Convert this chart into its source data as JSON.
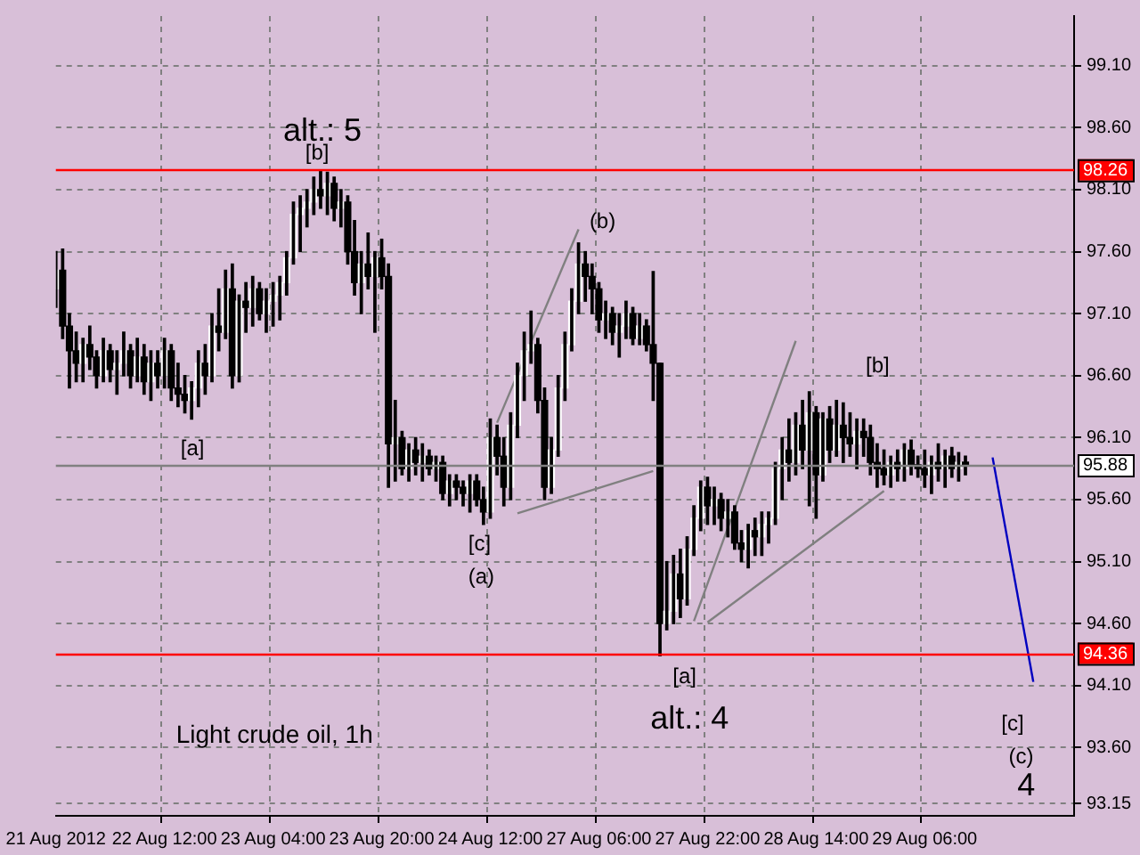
{
  "chart_data": {
    "type": "candlestick",
    "color": "#000000",
    "colors": [
      "#ffffff",
      "#000000",
      "#000000",
      "#000000",
      "#ffffff",
      "#000000",
      "#000000",
      "#ffffff",
      "#000000",
      "#ffffff",
      "#ffffff",
      "#000000",
      "#ffffff",
      "#000000",
      "#ffffff",
      "#000000",
      "#ffffff",
      "#000000",
      "#000000",
      "#000000",
      "#ffffff",
      "#ffffff",
      "#000000",
      "#ffffff",
      "#000000",
      "#ffffff",
      "#000000",
      "#ffffff",
      "#000000",
      "#ffffff",
      "#000000",
      "#ffffff",
      "#ffffff",
      "#ffffff",
      "#ffffff",
      "#ffffff",
      "#ffffff",
      "#ffffff",
      "#ffffff",
      "#000000",
      "#ffffff",
      "#000000",
      "#ffffff",
      "#000000",
      "#000000",
      "#ffffff",
      "#000000",
      "#ffffff",
      "#000000",
      "#000000",
      "#ffffff",
      "#000000",
      "#ffffff",
      "#000000",
      "#ffffff",
      "#000000",
      "#ffffff",
      "#000000",
      "#ffffff",
      "#000000",
      "#000000",
      "#ffffff",
      "#000000",
      "#000000",
      "#ffffff",
      "#000000",
      "#000000",
      "#ffffff",
      "#ffffff",
      "#ffffff",
      "#ffffff",
      "#000000",
      "#000000",
      "#ffffff",
      "#ffffff",
      "#ffffff",
      "#ffffff",
      "#ffffff",
      "#000000",
      "#000000",
      "#000000",
      "#ffffff",
      "#000000",
      "#ffffff",
      "#ffffff",
      "#000000",
      "#ffffff",
      "#000000",
      "#000000",
      "#000000",
      "#ffffff",
      "#ffffff",
      "#000000",
      "#ffffff",
      "#ffffff",
      "#ffffff",
      "#000000",
      "#ffffff",
      "#000000",
      "#ffffff",
      "#000000",
      "#000000",
      "#ffffff",
      "#000000",
      "#ffffff",
      "#ffffff",
      "#ffffff",
      "#ffffff",
      "#000000",
      "#ffffff",
      "#000000",
      "#ffffff",
      "#000000",
      "#ffffff",
      "#000000",
      "#ffffff",
      "#000000",
      "#000000",
      "#ffffff",
      "#000000",
      "#000000",
      "#000000",
      "#000000",
      "#ffffff",
      "#000000",
      "#ffffff",
      "#000000",
      "#000000",
      "#000000",
      "#ffffff",
      "#000000",
      "#ffffff",
      "#000000",
      "#ffffff",
      "#000000",
      null,
      null,
      null,
      null,
      null,
      null,
      null,
      null,
      null,
      null,
      null,
      null,
      null,
      null,
      null,
      null
    ],
    "categories": [
      "21 Aug 2012",
      null,
      null,
      null,
      null,
      null,
      null,
      null,
      null,
      null,
      null,
      null,
      null,
      null,
      null,
      null,
      "22 Aug 12:00",
      null,
      null,
      null,
      null,
      null,
      null,
      null,
      null,
      null,
      null,
      null,
      null,
      null,
      null,
      null,
      "23 Aug 04:00",
      null,
      null,
      null,
      null,
      null,
      null,
      null,
      null,
      null,
      null,
      null,
      null,
      null,
      null,
      null,
      "23 Aug 20:00",
      null,
      null,
      null,
      null,
      null,
      null,
      null,
      null,
      null,
      null,
      null,
      null,
      null,
      null,
      null,
      "24 Aug 12:00",
      null,
      null,
      null,
      null,
      null,
      null,
      null,
      null,
      null,
      null,
      null,
      null,
      null,
      null,
      null,
      "27 Aug 06:00",
      null,
      null,
      null,
      null,
      null,
      null,
      null,
      null,
      null,
      null,
      null,
      null,
      null,
      null,
      null,
      "27 Aug 22:00",
      null,
      null,
      null,
      null,
      null,
      null,
      null,
      null,
      null,
      null,
      null,
      null,
      null,
      null,
      null,
      "28 Aug 14:00",
      null,
      null,
      null,
      null,
      null,
      null,
      null,
      null,
      null,
      null,
      null,
      null,
      null,
      null,
      null,
      "29 Aug 06:00",
      null,
      null,
      null,
      null,
      null,
      null,
      null,
      null,
      null,
      null,
      null,
      null,
      null,
      null,
      null,
      null,
      null,
      null,
      null,
      null,
      null,
      null
    ],
    "ohlc": [
      [
        97.3,
        97.6,
        97.15,
        97.45
      ],
      [
        97.45,
        97.62,
        96.9,
        97.0
      ],
      [
        97.0,
        97.1,
        96.5,
        96.8
      ],
      [
        96.8,
        96.95,
        96.55,
        96.7
      ],
      [
        96.7,
        96.9,
        96.55,
        96.85
      ],
      [
        96.85,
        97.0,
        96.65,
        96.75
      ],
      [
        96.75,
        96.8,
        96.5,
        96.6
      ],
      [
        96.6,
        96.9,
        96.55,
        96.8
      ],
      [
        96.8,
        96.85,
        96.55,
        96.65
      ],
      [
        96.65,
        96.8,
        96.45,
        96.7
      ],
      [
        96.7,
        96.95,
        96.6,
        96.8
      ],
      [
        96.8,
        96.85,
        96.5,
        96.6
      ],
      [
        96.6,
        96.9,
        96.55,
        96.75
      ],
      [
        96.75,
        96.85,
        96.45,
        96.55
      ],
      [
        96.55,
        96.8,
        96.4,
        96.7
      ],
      [
        96.7,
        96.8,
        96.5,
        96.6
      ],
      [
        96.6,
        96.9,
        96.5,
        96.8
      ],
      [
        96.8,
        96.85,
        96.4,
        96.5
      ],
      [
        96.5,
        96.7,
        96.35,
        96.45
      ],
      [
        96.45,
        96.6,
        96.3,
        96.4
      ],
      [
        96.4,
        96.55,
        96.25,
        96.5
      ],
      [
        96.5,
        96.8,
        96.35,
        96.7
      ],
      [
        96.7,
        96.85,
        96.45,
        96.6
      ],
      [
        96.6,
        97.1,
        96.55,
        97.0
      ],
      [
        97.0,
        97.3,
        96.8,
        96.95
      ],
      [
        96.95,
        97.45,
        96.9,
        97.3
      ],
      [
        97.3,
        97.5,
        96.5,
        96.6
      ],
      [
        96.6,
        97.25,
        96.55,
        97.2
      ],
      [
        97.2,
        97.35,
        96.95,
        97.15
      ],
      [
        97.15,
        97.4,
        97.0,
        97.3
      ],
      [
        97.3,
        97.35,
        97.05,
        97.1
      ],
      [
        97.1,
        97.3,
        96.95,
        97.2
      ],
      [
        97.2,
        97.35,
        97.0,
        97.25
      ],
      [
        97.25,
        97.4,
        97.05,
        97.35
      ],
      [
        97.35,
        97.6,
        97.25,
        97.55
      ],
      [
        97.55,
        98.0,
        97.5,
        97.9
      ],
      [
        97.9,
        98.05,
        97.6,
        97.95
      ],
      [
        97.95,
        98.1,
        97.8,
        98.0
      ],
      [
        98.0,
        98.2,
        97.9,
        98.1
      ],
      [
        98.1,
        98.25,
        97.95,
        98.05
      ],
      [
        98.05,
        98.24,
        97.9,
        98.15
      ],
      [
        98.15,
        98.2,
        97.85,
        97.95
      ],
      [
        97.95,
        98.1,
        97.8,
        98.0
      ],
      [
        98.0,
        98.05,
        97.5,
        97.6
      ],
      [
        97.6,
        97.85,
        97.25,
        97.35
      ],
      [
        97.35,
        97.6,
        97.1,
        97.5
      ],
      [
        97.5,
        97.75,
        97.3,
        97.4
      ],
      [
        97.4,
        97.6,
        96.95,
        97.55
      ],
      [
        97.55,
        97.7,
        97.3,
        97.4
      ],
      [
        97.4,
        97.5,
        95.7,
        96.05
      ],
      [
        96.05,
        96.4,
        95.75,
        96.1
      ],
      [
        96.1,
        96.15,
        95.8,
        95.85
      ],
      [
        95.85,
        96.05,
        95.75,
        96.0
      ],
      [
        96.0,
        96.1,
        95.8,
        95.9
      ],
      [
        95.9,
        96.05,
        95.75,
        95.95
      ],
      [
        95.95,
        96.0,
        95.8,
        95.85
      ],
      [
        95.85,
        95.95,
        95.75,
        95.9
      ],
      [
        95.9,
        95.95,
        95.6,
        95.65
      ],
      [
        95.65,
        95.8,
        95.55,
        95.75
      ],
      [
        95.75,
        95.8,
        95.6,
        95.7
      ],
      [
        95.7,
        95.75,
        95.55,
        95.65
      ],
      [
        95.65,
        95.8,
        95.5,
        95.75
      ],
      [
        95.75,
        95.8,
        95.55,
        95.6
      ],
      [
        95.6,
        95.7,
        95.4,
        95.5
      ],
      [
        95.5,
        96.25,
        95.45,
        96.1
      ],
      [
        96.1,
        96.2,
        95.8,
        95.95
      ],
      [
        95.95,
        96.1,
        95.55,
        95.7
      ],
      [
        95.7,
        96.3,
        95.6,
        96.2
      ],
      [
        96.2,
        96.7,
        96.1,
        96.6
      ],
      [
        96.6,
        96.95,
        96.4,
        96.8
      ],
      [
        96.8,
        97.12,
        96.7,
        96.85
      ],
      [
        96.85,
        96.9,
        96.3,
        96.4
      ],
      [
        96.4,
        96.5,
        95.6,
        95.7
      ],
      [
        95.7,
        96.1,
        95.65,
        96.0
      ],
      [
        96.0,
        96.6,
        95.95,
        96.5
      ],
      [
        96.5,
        96.95,
        96.4,
        96.85
      ],
      [
        96.85,
        97.3,
        96.8,
        97.2
      ],
      [
        97.2,
        97.67,
        97.1,
        97.5
      ],
      [
        97.5,
        97.6,
        97.2,
        97.4
      ],
      [
        97.4,
        97.5,
        97.1,
        97.3
      ],
      [
        97.3,
        97.35,
        96.95,
        97.05
      ],
      [
        97.05,
        97.2,
        96.9,
        97.1
      ],
      [
        97.1,
        97.15,
        96.85,
        96.95
      ],
      [
        96.95,
        97.1,
        96.75,
        97.0
      ],
      [
        97.0,
        97.2,
        96.9,
        97.1
      ],
      [
        97.1,
        97.15,
        96.85,
        96.9
      ],
      [
        96.9,
        97.1,
        96.85,
        97.0
      ],
      [
        97.0,
        97.05,
        96.8,
        96.85
      ],
      [
        96.85,
        97.44,
        96.4,
        96.7
      ],
      [
        96.7,
        96.7,
        94.34,
        94.6
      ],
      [
        94.6,
        95.1,
        94.55,
        94.7
      ],
      [
        94.7,
        95.15,
        94.6,
        95.0
      ],
      [
        95.0,
        95.2,
        94.65,
        94.8
      ],
      [
        94.8,
        95.3,
        94.75,
        95.2
      ],
      [
        95.2,
        95.55,
        95.15,
        95.45
      ],
      [
        95.45,
        95.75,
        95.35,
        95.7
      ],
      [
        95.7,
        95.78,
        95.4,
        95.55
      ],
      [
        95.55,
        95.7,
        95.4,
        95.6
      ],
      [
        95.6,
        95.65,
        95.35,
        95.45
      ],
      [
        95.45,
        95.6,
        95.3,
        95.5
      ],
      [
        95.5,
        95.55,
        95.2,
        95.25
      ],
      [
        95.25,
        95.35,
        95.1,
        95.2
      ],
      [
        95.2,
        95.4,
        95.05,
        95.35
      ],
      [
        95.35,
        95.45,
        95.15,
        95.3
      ],
      [
        95.3,
        95.5,
        95.15,
        95.4
      ],
      [
        95.4,
        95.5,
        95.25,
        95.45
      ],
      [
        95.45,
        95.9,
        95.4,
        95.85
      ],
      [
        95.85,
        96.1,
        95.6,
        96.0
      ],
      [
        96.0,
        96.25,
        95.75,
        95.9
      ],
      [
        95.9,
        96.3,
        95.8,
        96.2
      ],
      [
        96.2,
        96.4,
        95.85,
        96.0
      ],
      [
        96.0,
        96.47,
        95.55,
        96.3
      ],
      [
        96.3,
        96.35,
        95.45,
        95.8
      ],
      [
        95.8,
        96.3,
        95.75,
        96.25
      ],
      [
        96.25,
        96.35,
        95.9,
        96.0
      ],
      [
        96.0,
        96.4,
        95.95,
        96.2
      ],
      [
        96.2,
        96.38,
        95.9,
        96.1
      ],
      [
        96.1,
        96.3,
        95.95,
        96.05
      ],
      [
        96.05,
        96.25,
        95.85,
        96.15
      ],
      [
        96.15,
        96.25,
        95.95,
        96.1
      ],
      [
        96.1,
        96.2,
        95.8,
        95.9
      ],
      [
        95.9,
        96.05,
        95.7,
        95.85
      ],
      [
        95.85,
        96.0,
        95.72,
        95.8
      ],
      [
        95.8,
        95.95,
        95.7,
        95.9
      ],
      [
        95.9,
        96.0,
        95.75,
        95.85
      ],
      [
        95.85,
        96.05,
        95.75,
        96.0
      ],
      [
        96.0,
        96.08,
        95.8,
        95.88
      ],
      [
        95.88,
        95.95,
        95.78,
        95.85
      ],
      [
        95.85,
        96.0,
        95.7,
        95.8
      ],
      [
        95.8,
        95.95,
        95.65,
        95.9
      ],
      [
        95.9,
        96.05,
        95.75,
        95.85
      ],
      [
        95.85,
        96.0,
        95.7,
        95.95
      ],
      [
        95.95,
        96.02,
        95.78,
        95.85
      ],
      [
        95.85,
        95.98,
        95.75,
        95.9
      ],
      [
        95.9,
        95.95,
        95.8,
        95.88
      ],
      null,
      null,
      null,
      null,
      null,
      null,
      null,
      null,
      null,
      null,
      null,
      null,
      null,
      null,
      null,
      null
    ],
    "series": [
      {
        "type": "line",
        "color": "#808080",
        "values": [
          null,
          null,
          null,
          null,
          null,
          null,
          null,
          null,
          null,
          null,
          null,
          null,
          null,
          null,
          null,
          null,
          null,
          null,
          null,
          null,
          null,
          null,
          null,
          null,
          null,
          null,
          null,
          null,
          null,
          null,
          null,
          null,
          null,
          null,
          null,
          null,
          null,
          null,
          null,
          null,
          null,
          null,
          null,
          null,
          null,
          null,
          null,
          null,
          null,
          null,
          null,
          null,
          null,
          null,
          null,
          null,
          null,
          null,
          null,
          null,
          null,
          null,
          null,
          null,
          null,
          96.22,
          null,
          null,
          null,
          null,
          null,
          null,
          null,
          null,
          null,
          null,
          null,
          97.78,
          null,
          null,
          null,
          null,
          null,
          null,
          null,
          null,
          null,
          null,
          null,
          null,
          null,
          null,
          null,
          null,
          null,
          null,
          null,
          null,
          null,
          null,
          null,
          null,
          null,
          null,
          null,
          null,
          null,
          null,
          null,
          null,
          null,
          null,
          null,
          null,
          null,
          null,
          null,
          null,
          null,
          null,
          null,
          null,
          null,
          null,
          null,
          null,
          null,
          null,
          null,
          null,
          null,
          null,
          null,
          null,
          null,
          null,
          null,
          null,
          null,
          null,
          null,
          null,
          null,
          null,
          null,
          null,
          null,
          null,
          null,
          null,
          null
        ]
      },
      {
        "type": "line",
        "color": "#808080",
        "values": [
          null,
          null,
          null,
          null,
          null,
          null,
          null,
          null,
          null,
          null,
          null,
          null,
          null,
          null,
          null,
          null,
          null,
          null,
          null,
          null,
          null,
          null,
          null,
          null,
          null,
          null,
          null,
          null,
          null,
          null,
          null,
          null,
          null,
          null,
          null,
          null,
          null,
          null,
          null,
          null,
          null,
          null,
          null,
          null,
          null,
          null,
          null,
          null,
          null,
          null,
          null,
          null,
          null,
          null,
          null,
          null,
          null,
          null,
          null,
          null,
          null,
          null,
          null,
          null,
          null,
          null,
          null,
          null,
          95.49,
          null,
          null,
          null,
          null,
          null,
          null,
          null,
          null,
          null,
          null,
          null,
          null,
          null,
          null,
          null,
          null,
          null,
          null,
          null,
          95.83,
          null,
          null,
          null,
          null,
          null,
          null,
          null,
          null,
          null,
          null,
          null,
          null,
          null,
          null,
          null,
          null,
          null,
          null,
          null,
          null,
          null,
          null,
          null,
          null,
          null,
          null,
          null,
          null,
          null,
          null,
          null,
          null,
          null,
          null,
          null,
          null,
          null,
          null,
          null,
          null,
          null,
          null,
          null,
          null,
          null,
          null,
          null,
          null,
          null,
          null,
          null,
          null,
          null,
          null,
          null,
          null,
          null,
          null,
          null,
          null,
          null,
          null
        ]
      },
      {
        "type": "line",
        "color": "#808080",
        "values": [
          null,
          null,
          null,
          null,
          null,
          null,
          null,
          null,
          null,
          null,
          null,
          null,
          null,
          null,
          null,
          null,
          null,
          null,
          null,
          null,
          null,
          null,
          null,
          null,
          null,
          null,
          null,
          null,
          null,
          null,
          null,
          null,
          null,
          null,
          null,
          null,
          null,
          null,
          null,
          null,
          null,
          null,
          null,
          null,
          null,
          null,
          null,
          null,
          null,
          null,
          null,
          null,
          null,
          null,
          null,
          null,
          null,
          null,
          null,
          null,
          null,
          null,
          null,
          null,
          null,
          null,
          null,
          null,
          null,
          null,
          null,
          null,
          null,
          null,
          null,
          null,
          null,
          null,
          null,
          null,
          null,
          null,
          null,
          null,
          null,
          null,
          null,
          null,
          null,
          null,
          null,
          null,
          null,
          null,
          94.62,
          null,
          null,
          null,
          null,
          null,
          null,
          null,
          null,
          null,
          null,
          null,
          null,
          null,
          null,
          96.88,
          null,
          null,
          null,
          null,
          null,
          null,
          null,
          null,
          null,
          null,
          null,
          null,
          null,
          null,
          null,
          null,
          null,
          null,
          null,
          null,
          null,
          null,
          null,
          null,
          null,
          null,
          null,
          null,
          null,
          null,
          null,
          null,
          null,
          null,
          null,
          null,
          null,
          null,
          null,
          null,
          null
        ]
      },
      {
        "type": "line",
        "color": "#808080",
        "values": [
          null,
          null,
          null,
          null,
          null,
          null,
          null,
          null,
          null,
          null,
          null,
          null,
          null,
          null,
          null,
          null,
          null,
          null,
          null,
          null,
          null,
          null,
          null,
          null,
          null,
          null,
          null,
          null,
          null,
          null,
          null,
          null,
          null,
          null,
          null,
          null,
          null,
          null,
          null,
          null,
          null,
          null,
          null,
          null,
          null,
          null,
          null,
          null,
          null,
          null,
          null,
          null,
          null,
          null,
          null,
          null,
          null,
          null,
          null,
          null,
          null,
          null,
          null,
          null,
          null,
          null,
          null,
          null,
          null,
          null,
          null,
          null,
          null,
          null,
          null,
          null,
          null,
          null,
          null,
          null,
          null,
          null,
          null,
          null,
          null,
          null,
          null,
          null,
          null,
          null,
          null,
          null,
          null,
          null,
          null,
          null,
          94.61,
          null,
          null,
          null,
          null,
          null,
          null,
          null,
          null,
          null,
          null,
          null,
          null,
          null,
          null,
          null,
          null,
          null,
          null,
          null,
          null,
          null,
          null,
          null,
          null,
          null,
          95.67,
          null,
          null,
          null,
          null,
          null,
          null,
          null,
          null,
          null,
          null,
          null,
          null,
          null,
          null,
          null,
          null,
          null,
          null,
          null,
          null,
          null,
          null,
          null,
          null,
          null,
          null,
          null,
          null
        ]
      },
      {
        "type": "line",
        "color": "#0000c0",
        "values": [
          null,
          null,
          null,
          null,
          null,
          null,
          null,
          null,
          null,
          null,
          null,
          null,
          null,
          null,
          null,
          null,
          null,
          null,
          null,
          null,
          null,
          null,
          null,
          null,
          null,
          null,
          null,
          null,
          null,
          null,
          null,
          null,
          null,
          null,
          null,
          null,
          null,
          null,
          null,
          null,
          null,
          null,
          null,
          null,
          null,
          null,
          null,
          null,
          null,
          null,
          null,
          null,
          null,
          null,
          null,
          null,
          null,
          null,
          null,
          null,
          null,
          null,
          null,
          null,
          null,
          null,
          null,
          null,
          null,
          null,
          null,
          null,
          null,
          null,
          null,
          null,
          null,
          null,
          null,
          null,
          null,
          null,
          null,
          null,
          null,
          null,
          null,
          null,
          null,
          null,
          null,
          null,
          null,
          null,
          null,
          null,
          null,
          null,
          null,
          null,
          null,
          null,
          null,
          null,
          null,
          null,
          null,
          null,
          null,
          null,
          null,
          null,
          null,
          null,
          null,
          null,
          null,
          null,
          null,
          null,
          null,
          null,
          null,
          null,
          null,
          null,
          null,
          null,
          null,
          null,
          null,
          null,
          null,
          null,
          null,
          null,
          null,
          null,
          95.94,
          null,
          null,
          null,
          null,
          null,
          94.13,
          null,
          null,
          null,
          null,
          null,
          null
        ]
      }
    ],
    "ylim": [
      93.05,
      99.5
    ],
    "yticks": [
      {
        "value": 93.15,
        "label": "93.15"
      },
      {
        "value": 93.6,
        "label": "93.60"
      },
      {
        "value": 94.1,
        "label": "94.10"
      },
      {
        "value": 94.6,
        "label": "94.60"
      },
      {
        "value": 95.1,
        "label": "95.10"
      },
      {
        "value": 95.6,
        "label": "95.60"
      },
      {
        "value": 96.1,
        "label": "96.10"
      },
      {
        "value": 96.6,
        "label": "96.60"
      },
      {
        "value": 97.1,
        "label": "97.10"
      },
      {
        "value": 97.6,
        "label": "97.60"
      },
      {
        "value": 98.1,
        "label": "98.10"
      },
      {
        "value": 98.6,
        "label": "98.60"
      },
      {
        "value": 99.1,
        "label": "99.10"
      }
    ],
    "grid": true,
    "ref_lines": [
      {
        "axis": "y",
        "value": 98.26,
        "label": "98.26",
        "color": "#ff0000"
      },
      {
        "axis": "y",
        "value": 95.88,
        "label": "95.88",
        "color": "#808080"
      },
      {
        "axis": "y",
        "value": 94.36,
        "label": "94.36",
        "color": "#ff0000"
      }
    ],
    "annotations": [
      {
        "text": "alt.: 5",
        "y": 98.25
      },
      {
        "text": "[b]",
        "y": 98.25
      },
      {
        "text": "[a]",
        "y": 96.25
      },
      {
        "text": "[c]",
        "y": 95.45
      },
      "(a)",
      "(b)",
      {
        "text": "[a]",
        "y": 94.34
      },
      {
        "text": "alt.: 4",
        "y": 94.34
      },
      "[b]",
      "[c]",
      "(c)",
      "4",
      "Light crude oil, 1h"
    ]
  }
}
